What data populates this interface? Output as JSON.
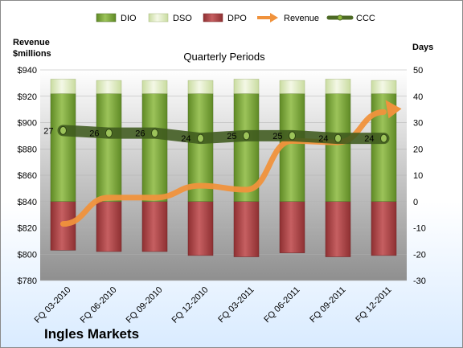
{
  "chart_data": {
    "type": "bar",
    "subtitle": "Quarterly Periods",
    "company": "Ingles Markets",
    "left_axis_title": [
      "Revenue",
      "$millions"
    ],
    "right_axis_title": "Days",
    "categories": [
      "FQ 03-2010",
      "FQ 06-2010",
      "FQ 09-2010",
      "FQ 12-2010",
      "FQ 03-2011",
      "FQ 06-2011",
      "FQ 09-2011",
      "FQ 12-2011"
    ],
    "left_ticks": [
      "$780",
      "$800",
      "$820",
      "$840",
      "$860",
      "$880",
      "$900",
      "$920",
      "$940"
    ],
    "right_ticks": [
      "-30",
      "-20",
      "-10",
      "0",
      "10",
      "20",
      "30",
      "40",
      "50"
    ],
    "left_range": [
      780,
      940
    ],
    "right_range": [
      -30,
      50
    ],
    "legend": [
      "DIO",
      "DSO",
      "DPO",
      "Revenue",
      "CCC"
    ],
    "series": [
      {
        "name": "DIO",
        "axis": "right",
        "color": "#7aa23a",
        "values": [
          41,
          41,
          41,
          41,
          41,
          41,
          41,
          41
        ]
      },
      {
        "name": "DSO",
        "axis": "right",
        "color": "#e6f0c8",
        "values": [
          5.5,
          5,
          5,
          5,
          5.5,
          5,
          5.5,
          5
        ]
      },
      {
        "name": "DPO",
        "axis": "right",
        "color": "#b5484a",
        "values": [
          -18.5,
          -19,
          -19,
          -20.5,
          -21,
          -19.5,
          -21,
          -20.5
        ]
      },
      {
        "name": "Revenue",
        "axis": "left",
        "color": "#f0923c",
        "values": [
          823,
          843,
          843,
          852,
          849,
          886,
          885,
          908
        ]
      },
      {
        "name": "CCC",
        "axis": "right",
        "color": "#4d6a25",
        "values": [
          27,
          26,
          26,
          24,
          25,
          25,
          24,
          24
        ]
      }
    ],
    "ccc_labels": [
      "27",
      "26",
      "26",
      "24",
      "25",
      "25",
      "24",
      "24"
    ],
    "grid": true
  }
}
